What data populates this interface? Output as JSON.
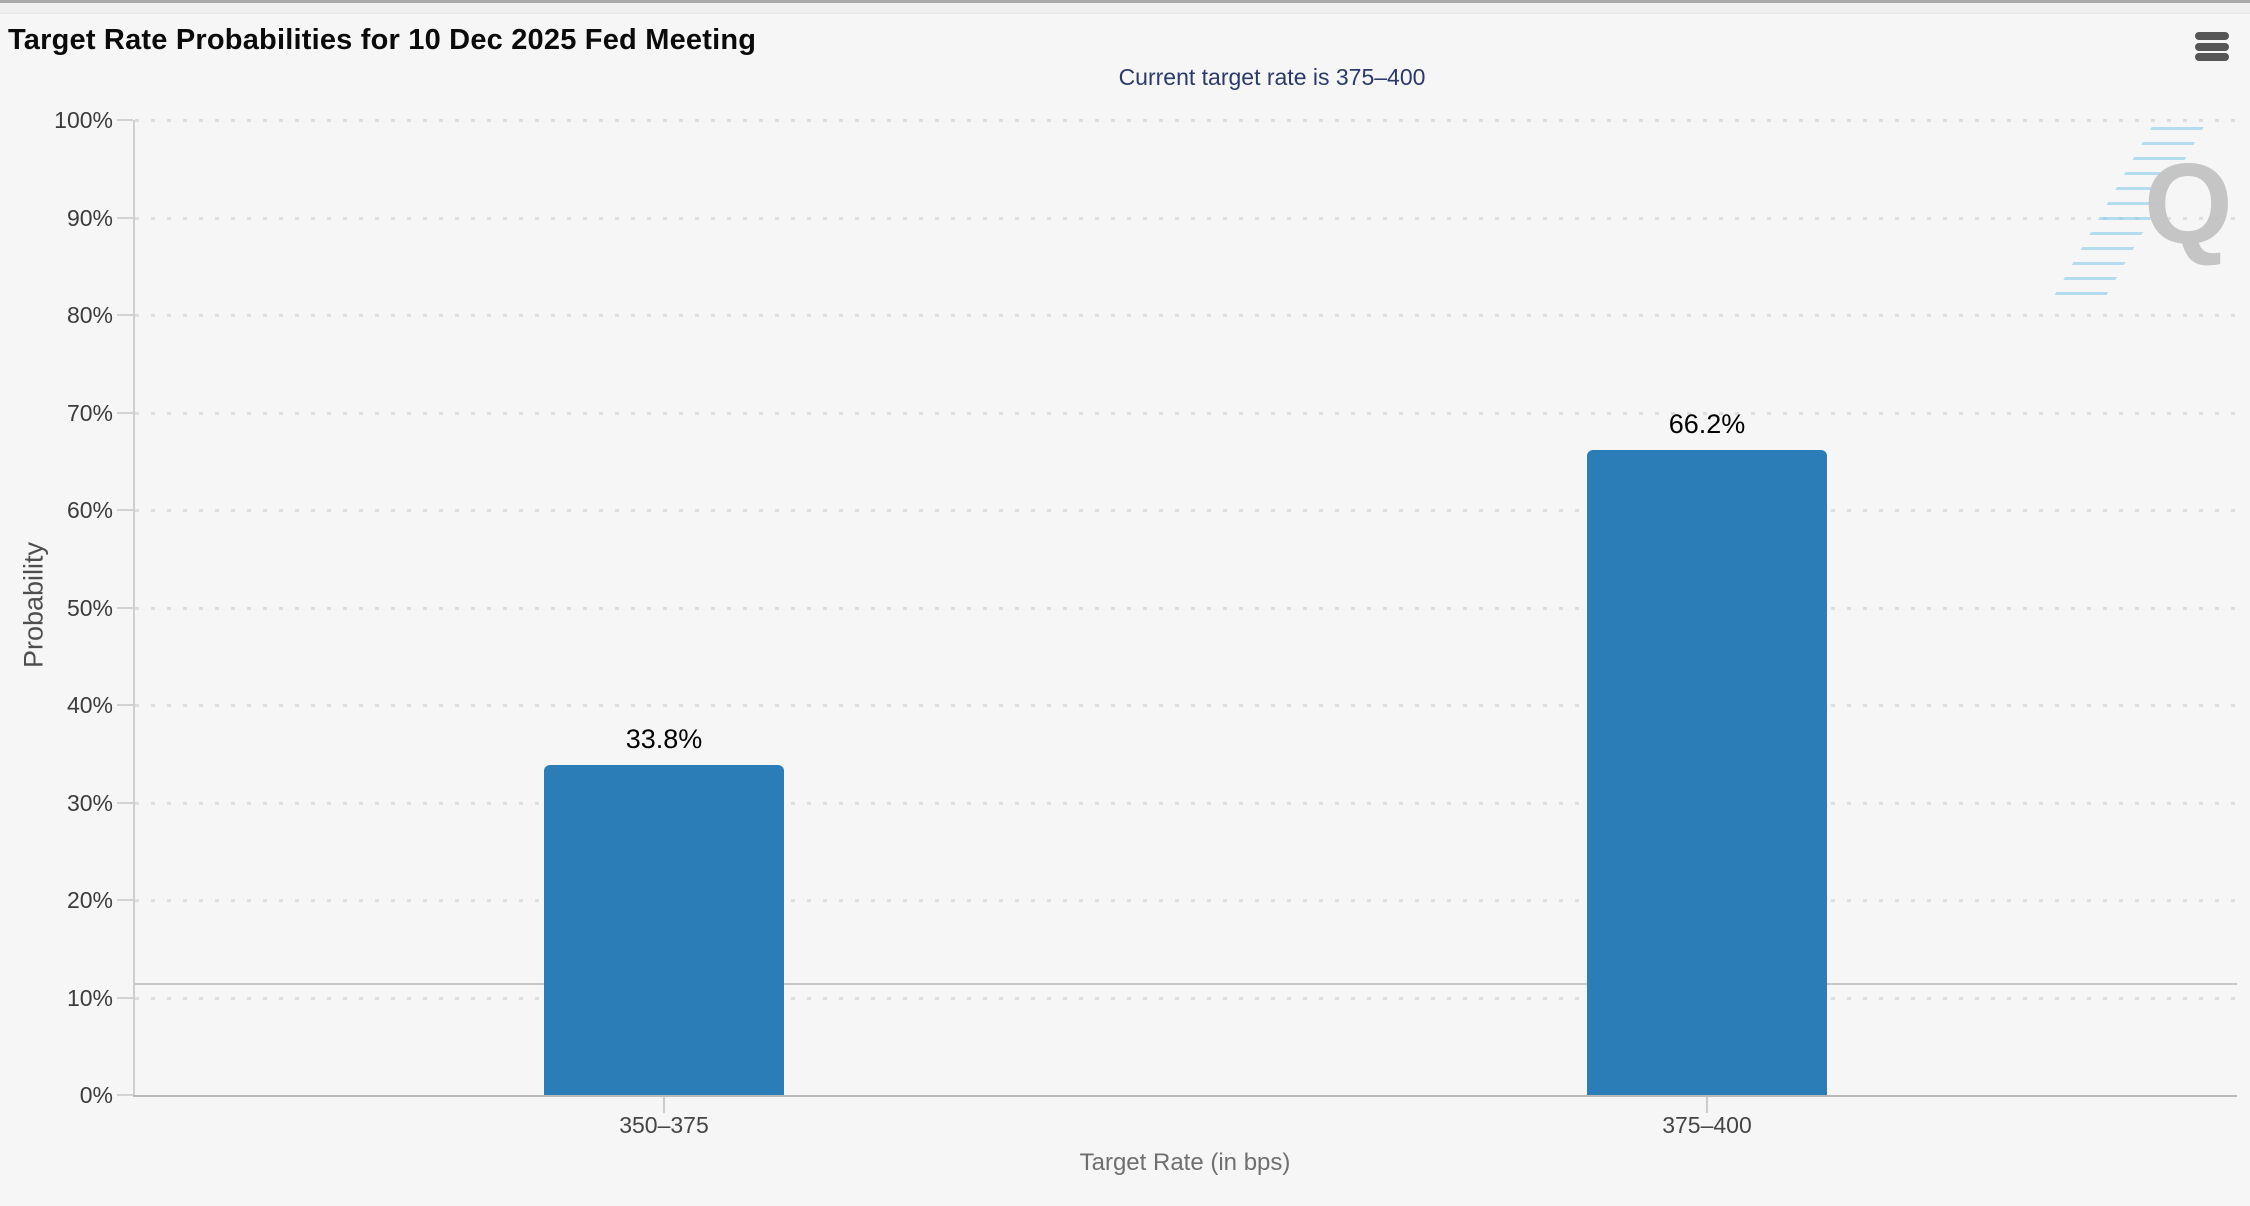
{
  "header": {
    "title": "Target Rate Probabilities for 10 Dec 2025 Fed Meeting"
  },
  "subtitle": "Current target rate is 375–400",
  "watermark": {
    "letter": "Q"
  },
  "chart_data": {
    "type": "bar",
    "title": "Target Rate Probabilities for 10 Dec 2025 Fed Meeting",
    "subtitle": "Current target rate is 375–400",
    "categories": [
      "350–375",
      "375–400"
    ],
    "values": [
      33.8,
      66.2
    ],
    "value_labels": [
      "33.8%",
      "66.2%"
    ],
    "xlabel": "Target Rate (in bps)",
    "ylabel": "Probability",
    "ylim": [
      0,
      100
    ],
    "ytick_step": 10,
    "ytick_labels": [
      "0%",
      "10%",
      "20%",
      "30%",
      "40%",
      "50%",
      "60%",
      "70%",
      "80%",
      "90%",
      "100%"
    ],
    "grid": "dotted-horizontal",
    "legend": "none",
    "reference_line_value": 11.4,
    "bar_color": "#2a7db6"
  }
}
